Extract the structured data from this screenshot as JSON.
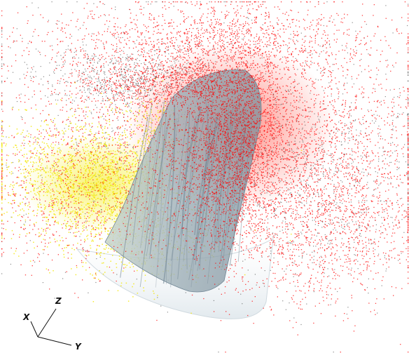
{
  "axes": {
    "x_label": "X",
    "y_label": "Y",
    "z_label": "Z"
  },
  "colors": {
    "background": "#ffffff",
    "particles_red": "#ff0000",
    "particles_dark": "#2a2a2a",
    "particles_yellow": "#f2e600",
    "surface_fill": "#b7c7cf",
    "surface_edge": "#6f8594",
    "dish_fill": "#e8eef2",
    "axis_line": "#111111"
  },
  "icons": {
    "axis_triad": "xyz-axes-icon"
  }
}
